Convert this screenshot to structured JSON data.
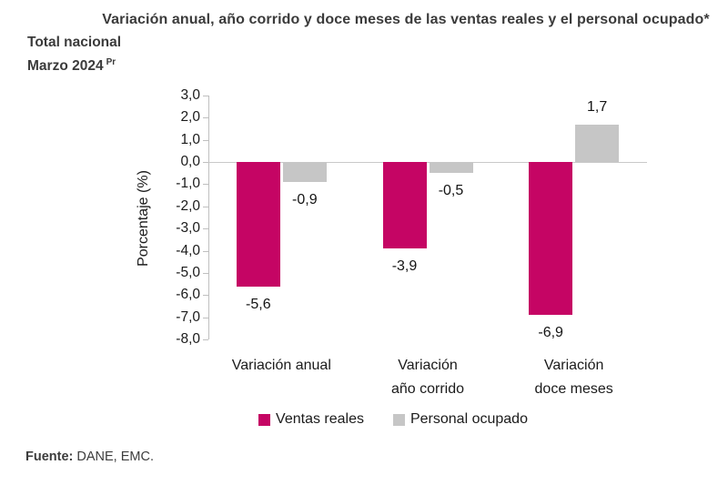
{
  "header": {
    "title": "Variación anual, año corrido y doce meses de las ventas reales y el personal ocupado*",
    "scope": "Total nacional",
    "period": "Marzo 2024",
    "period_note": "Pr"
  },
  "chart_data": {
    "type": "bar",
    "title": "Variación anual, año corrido y doce meses de las ventas reales y el personal ocupado*",
    "subtitle": "Total nacional, Marzo 2024 (Pr)",
    "categories": [
      [
        "Variación anual"
      ],
      [
        "Variación",
        "año corrido"
      ],
      [
        "Variación",
        "doce meses"
      ]
    ],
    "series": [
      {
        "name": "Ventas reales",
        "color": "#C50564",
        "values": [
          -5.6,
          -3.9,
          -6.9
        ],
        "labels": [
          "-5,6",
          "-3,9",
          "-6,9"
        ]
      },
      {
        "name": "Personal ocupado",
        "color": "#C6C6C6",
        "values": [
          -0.9,
          -0.5,
          1.7
        ],
        "labels": [
          "-0,9",
          "-0,5",
          "1,7"
        ]
      }
    ],
    "xlabel": "",
    "ylabel": "Porcentaje (%)",
    "ylim": [
      -8,
      3
    ],
    "ytick_step": 1,
    "yticks": [
      "3,0",
      "2,0",
      "1,0",
      "0,0",
      "-1,0",
      "-2,0",
      "-3,0",
      "-4,0",
      "-5,0",
      "-6,0",
      "-7,0",
      "-8,0"
    ],
    "grid": false,
    "legend_position": "bottom"
  },
  "footer": {
    "source_label": "Fuente:",
    "source_text": " DANE, EMC."
  },
  "colors": {
    "ventas_reales": "#C50564",
    "personal_ocupado": "#C6C6C6",
    "axis": "#BFBFBF",
    "zero_line": "#C9C9C9",
    "label_text": "#1B1B1B",
    "heading_text": "#3B3B3B"
  }
}
